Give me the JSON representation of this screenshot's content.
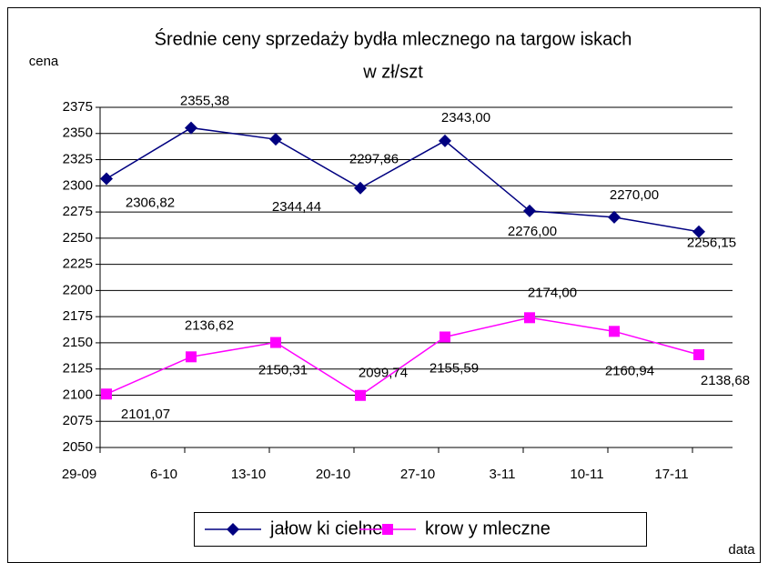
{
  "chart_data": {
    "type": "line",
    "title": "Średnie ceny sprzedaży bydła mlecznego na targow iskach",
    "subtitle": "w zł/szt",
    "y_label": "cena",
    "x_label": "data",
    "categories": [
      "29-09",
      "6-10",
      "13-10",
      "20-10",
      "27-10",
      "3-11",
      "10-11",
      "17-11"
    ],
    "series": [
      {
        "name": "jałow ki cielne",
        "color": "#000080",
        "marker": "diamond",
        "values": [
          2306.82,
          2355.38,
          2344.44,
          2297.86,
          2343.0,
          2276.0,
          2270.0,
          2256.15
        ],
        "value_labels": [
          "2306,82",
          "2355,38",
          "2344,44",
          "2297,86",
          "2343,00",
          "2276,00",
          "2270,00",
          "2256,15"
        ]
      },
      {
        "name": "krow y mleczne",
        "color": "#ff00ff",
        "marker": "square",
        "values": [
          2101.07,
          2136.62,
          2150.31,
          2099.74,
          2155.59,
          2174.0,
          2160.94,
          2138.68
        ],
        "value_labels": [
          "2101,07",
          "2136,62",
          "2150,31",
          "2099,74",
          "2155,59",
          "2174,00",
          "2160,94",
          "2138,68"
        ]
      }
    ],
    "ylim": [
      2050,
      2375
    ],
    "yticks": [
      2050,
      2075,
      2100,
      2125,
      2150,
      2175,
      2200,
      2225,
      2250,
      2275,
      2300,
      2325,
      2350,
      2375
    ],
    "grid": true,
    "legend": "bottom"
  }
}
